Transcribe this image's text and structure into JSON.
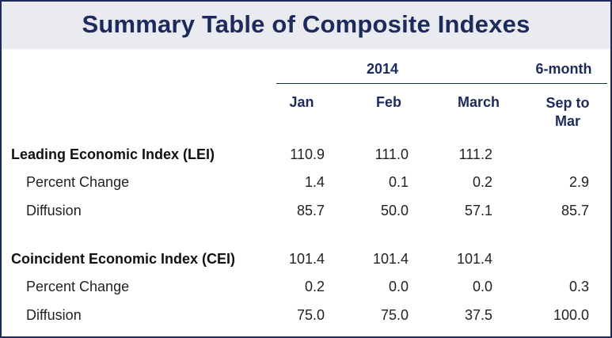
{
  "title": "Summary Table of Composite Indexes",
  "header": {
    "year_label": "2014",
    "period_label": "6-month",
    "columns": [
      "Jan",
      "Feb",
      "March",
      "Sep to\nMar"
    ]
  },
  "sections": [
    {
      "name": "Leading Economic Index (LEI)",
      "values": [
        "110.9",
        "111.0",
        "111.2",
        ""
      ],
      "rows": [
        {
          "label": "Percent Change",
          "values": [
            "1.4",
            "0.1",
            "0.2",
            "2.9"
          ]
        },
        {
          "label": "Diffusion",
          "values": [
            "85.7",
            "50.0",
            "57.1",
            "85.7"
          ]
        }
      ]
    },
    {
      "name": "Coincident Economic Index (CEI)",
      "values": [
        "101.4",
        "101.4",
        "101.4",
        ""
      ],
      "rows": [
        {
          "label": "Percent Change",
          "values": [
            "0.2",
            "0.0",
            "0.0",
            "0.3"
          ]
        },
        {
          "label": "Diffusion",
          "values": [
            "75.0",
            "75.0",
            "37.5",
            "100.0"
          ]
        }
      ]
    }
  ]
}
